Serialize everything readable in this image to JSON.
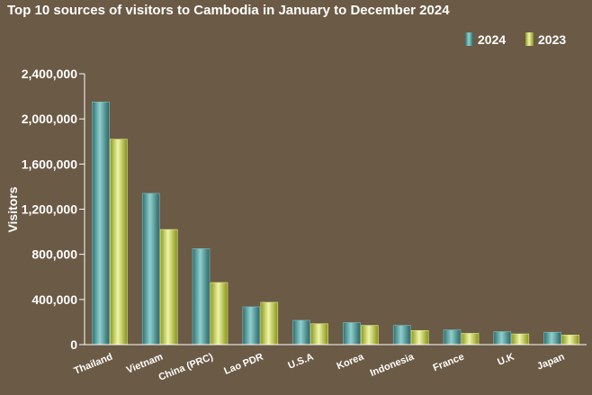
{
  "chart_data": {
    "type": "bar",
    "title": "Top 10 sources of visitors to Cambodia in January to December 2024",
    "xlabel": "",
    "ylabel": "Visitors",
    "ylim": [
      0,
      2400000
    ],
    "yticks": [
      "0",
      "400,000",
      "800,000",
      "1,200,000",
      "1,600,000",
      "2,000,000",
      "2,400,000"
    ],
    "ytick_values": [
      0,
      400000,
      800000,
      1200000,
      1600000,
      2000000,
      2400000
    ],
    "categories": [
      "Thailand",
      "Vietnam",
      "China (PRC)",
      "Lao PDR",
      "U.S.A",
      "Korea",
      "Indonesia",
      "France",
      "U.K",
      "Japan"
    ],
    "series": [
      {
        "name": "2024",
        "color": "#4f9c9c",
        "values": [
          2150000,
          1340000,
          850000,
          335000,
          215000,
          195000,
          170000,
          130000,
          115000,
          110000
        ]
      },
      {
        "name": "2023",
        "color": "#c8d44e",
        "values": [
          1820000,
          1020000,
          550000,
          375000,
          185000,
          170000,
          125000,
          100000,
          95000,
          85000
        ]
      }
    ],
    "grid": false,
    "legend_position": "top-right"
  }
}
